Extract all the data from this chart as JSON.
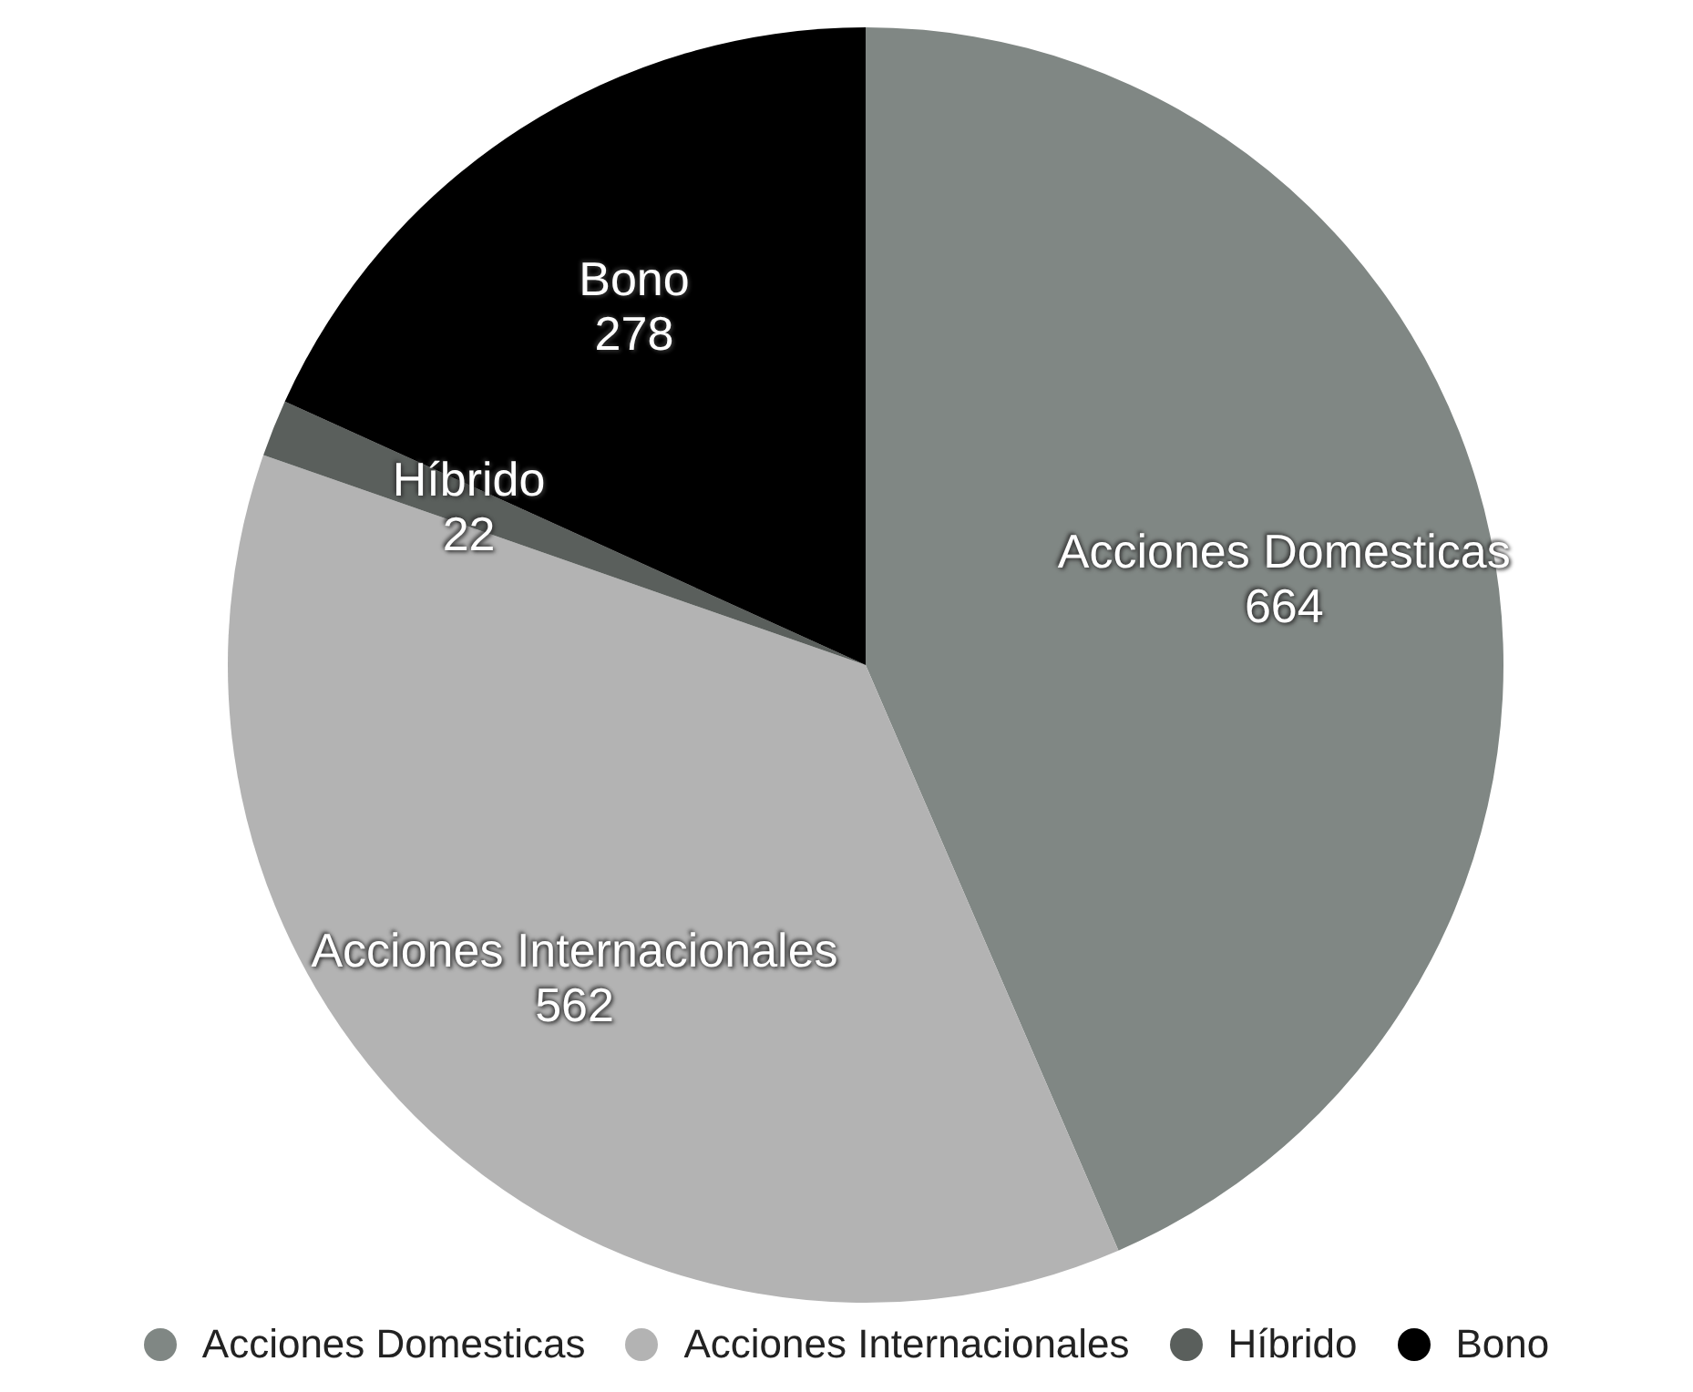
{
  "chart_data": {
    "type": "pie",
    "categories": [
      "Acciones Domesticas",
      "Acciones Internacionales",
      "Híbrido",
      "Bono"
    ],
    "values": [
      664,
      562,
      22,
      278
    ],
    "colors": [
      "#808784",
      "#b3b3b3",
      "#5a5f5c",
      "#000000"
    ],
    "data_labels": true,
    "legend": "bottom"
  }
}
